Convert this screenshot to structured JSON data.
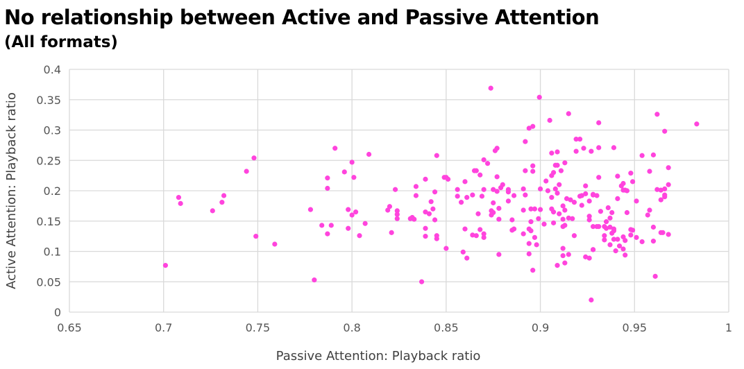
{
  "chart_data": {
    "type": "scatter",
    "title": "No relationship between Active and Passive Attention",
    "subtitle": "(All formats)",
    "xlabel": "Passive Attention: Playback ratio",
    "ylabel": "Active Attention: Playback ratio",
    "xlim": [
      0.65,
      1
    ],
    "ylim": [
      0,
      0.4
    ],
    "xticks": [
      "0.65",
      "0.7",
      "0.75",
      "0.8",
      "0.85",
      "0.9",
      "0.95",
      "1"
    ],
    "yticks": [
      "0",
      "0.05",
      "0.1",
      "0.15",
      "0.2",
      "0.25",
      "0.3",
      "0.35",
      "0.4"
    ],
    "grid": true,
    "legend": "none",
    "color": "#ff44dd",
    "points": [
      [
        0.701,
        0.077
      ],
      [
        0.708,
        0.189
      ],
      [
        0.709,
        0.179
      ],
      [
        0.726,
        0.167
      ],
      [
        0.731,
        0.181
      ],
      [
        0.732,
        0.192
      ],
      [
        0.744,
        0.232
      ],
      [
        0.748,
        0.254
      ],
      [
        0.749,
        0.125
      ],
      [
        0.759,
        0.112
      ],
      [
        0.778,
        0.169
      ],
      [
        0.78,
        0.053
      ],
      [
        0.784,
        0.143
      ],
      [
        0.787,
        0.129
      ],
      [
        0.787,
        0.204
      ],
      [
        0.787,
        0.221
      ],
      [
        0.789,
        0.143
      ],
      [
        0.791,
        0.27
      ],
      [
        0.796,
        0.231
      ],
      [
        0.798,
        0.138
      ],
      [
        0.798,
        0.169
      ],
      [
        0.8,
        0.247
      ],
      [
        0.8,
        0.16
      ],
      [
        0.801,
        0.222
      ],
      [
        0.802,
        0.165
      ],
      [
        0.804,
        0.126
      ],
      [
        0.807,
        0.146
      ],
      [
        0.809,
        0.26
      ],
      [
        0.819,
        0.168
      ],
      [
        0.82,
        0.174
      ],
      [
        0.821,
        0.131
      ],
      [
        0.823,
        0.202
      ],
      [
        0.824,
        0.167
      ],
      [
        0.824,
        0.161
      ],
      [
        0.824,
        0.154
      ],
      [
        0.831,
        0.154
      ],
      [
        0.832,
        0.156
      ],
      [
        0.833,
        0.153
      ],
      [
        0.834,
        0.207
      ],
      [
        0.834,
        0.192
      ],
      [
        0.837,
        0.05
      ],
      [
        0.839,
        0.219
      ],
      [
        0.839,
        0.165
      ],
      [
        0.839,
        0.138
      ],
      [
        0.839,
        0.125
      ],
      [
        0.841,
        0.162
      ],
      [
        0.842,
        0.182
      ],
      [
        0.843,
        0.17
      ],
      [
        0.844,
        0.198
      ],
      [
        0.844,
        0.152
      ],
      [
        0.845,
        0.258
      ],
      [
        0.845,
        0.126
      ],
      [
        0.845,
        0.121
      ],
      [
        0.849,
        0.222
      ],
      [
        0.85,
        0.222
      ],
      [
        0.851,
        0.219
      ],
      [
        0.85,
        0.105
      ],
      [
        0.8737,
        0.369
      ],
      [
        0.8995,
        0.354
      ],
      [
        0.915,
        0.327
      ],
      [
        0.905,
        0.316
      ],
      [
        0.894,
        0.303
      ],
      [
        0.896,
        0.306
      ],
      [
        0.892,
        0.281
      ],
      [
        0.919,
        0.285
      ],
      [
        0.921,
        0.285
      ],
      [
        0.906,
        0.262
      ],
      [
        0.909,
        0.264
      ],
      [
        0.919,
        0.265
      ],
      [
        0.923,
        0.27
      ],
      [
        0.927,
        0.265
      ],
      [
        0.876,
        0.266
      ],
      [
        0.877,
        0.27
      ],
      [
        0.87,
        0.251
      ],
      [
        0.872,
        0.245
      ],
      [
        0.865,
        0.233
      ],
      [
        0.866,
        0.233
      ],
      [
        0.868,
        0.226
      ],
      [
        0.86,
        0.215
      ],
      [
        0.877,
        0.223
      ],
      [
        0.892,
        0.233
      ],
      [
        0.896,
        0.241
      ],
      [
        0.896,
        0.232
      ],
      [
        0.908,
        0.242
      ],
      [
        0.909,
        0.242
      ],
      [
        0.906,
        0.225
      ],
      [
        0.907,
        0.23
      ],
      [
        0.911,
        0.233
      ],
      [
        0.913,
        0.246
      ],
      [
        0.903,
        0.216
      ],
      [
        0.91,
        0.21
      ],
      [
        0.856,
        0.202
      ],
      [
        0.856,
        0.191
      ],
      [
        0.858,
        0.181
      ],
      [
        0.861,
        0.189
      ],
      [
        0.864,
        0.193
      ],
      [
        0.869,
        0.191
      ],
      [
        0.87,
        0.202
      ],
      [
        0.875,
        0.202
      ],
      [
        0.877,
        0.199
      ],
      [
        0.879,
        0.205
      ],
      [
        0.88,
        0.21
      ],
      [
        0.883,
        0.202
      ],
      [
        0.883,
        0.198
      ],
      [
        0.886,
        0.192
      ],
      [
        0.883,
        0.183
      ],
      [
        0.875,
        0.18
      ],
      [
        0.878,
        0.171
      ],
      [
        0.874,
        0.167
      ],
      [
        0.875,
        0.164
      ],
      [
        0.874,
        0.16
      ],
      [
        0.867,
        0.162
      ],
      [
        0.891,
        0.203
      ],
      [
        0.892,
        0.193
      ],
      [
        0.891,
        0.168
      ],
      [
        0.895,
        0.17
      ],
      [
        0.897,
        0.17
      ],
      [
        0.9,
        0.169
      ],
      [
        0.9,
        0.203
      ],
      [
        0.904,
        0.2
      ],
      [
        0.908,
        0.203
      ],
      [
        0.906,
        0.189
      ],
      [
        0.909,
        0.196
      ],
      [
        0.906,
        0.17
      ],
      [
        0.907,
        0.165
      ],
      [
        0.91,
        0.162
      ],
      [
        0.912,
        0.175
      ],
      [
        0.913,
        0.168
      ],
      [
        0.914,
        0.187
      ],
      [
        0.916,
        0.185
      ],
      [
        0.918,
        0.181
      ],
      [
        0.922,
        0.176
      ],
      [
        0.921,
        0.191
      ],
      [
        0.922,
        0.192
      ],
      [
        0.924,
        0.195
      ],
      [
        0.924,
        0.208
      ],
      [
        0.926,
        0.183
      ],
      [
        0.928,
        0.194
      ],
      [
        0.93,
        0.192
      ],
      [
        0.899,
        0.154
      ],
      [
        0.895,
        0.149
      ],
      [
        0.902,
        0.145
      ],
      [
        0.885,
        0.152
      ],
      [
        0.878,
        0.153
      ],
      [
        0.907,
        0.147
      ],
      [
        0.912,
        0.153
      ],
      [
        0.915,
        0.155
      ],
      [
        0.917,
        0.154
      ],
      [
        0.926,
        0.158
      ],
      [
        0.926,
        0.152
      ],
      [
        0.928,
        0.141
      ],
      [
        0.93,
        0.141
      ],
      [
        0.86,
        0.137
      ],
      [
        0.864,
        0.127
      ],
      [
        0.866,
        0.126
      ],
      [
        0.868,
        0.136
      ],
      [
        0.87,
        0.129
      ],
      [
        0.87,
        0.123
      ],
      [
        0.885,
        0.135
      ],
      [
        0.886,
        0.137
      ],
      [
        0.891,
        0.129
      ],
      [
        0.894,
        0.137
      ],
      [
        0.895,
        0.134
      ],
      [
        0.897,
        0.123
      ],
      [
        0.898,
        0.111
      ],
      [
        0.894,
        0.113
      ],
      [
        0.912,
        0.141
      ],
      [
        0.913,
        0.143
      ],
      [
        0.918,
        0.126
      ],
      [
        0.859,
        0.099
      ],
      [
        0.861,
        0.089
      ],
      [
        0.878,
        0.095
      ],
      [
        0.894,
        0.096
      ],
      [
        0.896,
        0.069
      ],
      [
        0.912,
        0.105
      ],
      [
        0.912,
        0.093
      ],
      [
        0.915,
        0.095
      ],
      [
        0.909,
        0.077
      ],
      [
        0.913,
        0.081
      ],
      [
        0.924,
        0.091
      ],
      [
        0.926,
        0.089
      ],
      [
        0.928,
        0.103
      ],
      [
        0.927,
        0.02
      ],
      [
        0.962,
        0.326
      ],
      [
        0.983,
        0.31
      ],
      [
        0.966,
        0.298
      ],
      [
        0.931,
        0.312
      ],
      [
        0.931,
        0.271
      ],
      [
        0.939,
        0.271
      ],
      [
        0.954,
        0.258
      ],
      [
        0.96,
        0.259
      ],
      [
        0.958,
        0.232
      ],
      [
        0.968,
        0.238
      ],
      [
        0.931,
        0.222
      ],
      [
        0.941,
        0.224
      ],
      [
        0.948,
        0.229
      ],
      [
        0.949,
        0.215
      ],
      [
        0.944,
        0.212
      ],
      [
        0.943,
        0.208
      ],
      [
        0.944,
        0.201
      ],
      [
        0.945,
        0.201
      ],
      [
        0.946,
        0.2
      ],
      [
        0.962,
        0.202
      ],
      [
        0.964,
        0.201
      ],
      [
        0.966,
        0.203
      ],
      [
        0.968,
        0.21
      ],
      [
        0.966,
        0.193
      ],
      [
        0.966,
        0.19
      ],
      [
        0.964,
        0.185
      ],
      [
        0.928,
        0.193
      ],
      [
        0.941,
        0.187
      ],
      [
        0.951,
        0.183
      ],
      [
        0.936,
        0.172
      ],
      [
        0.938,
        0.164
      ],
      [
        0.932,
        0.166
      ],
      [
        0.946,
        0.164
      ],
      [
        0.958,
        0.168
      ],
      [
        0.957,
        0.16
      ],
      [
        0.937,
        0.155
      ],
      [
        0.935,
        0.149
      ],
      [
        0.931,
        0.141
      ],
      [
        0.934,
        0.141
      ],
      [
        0.935,
        0.138
      ],
      [
        0.937,
        0.14
      ],
      [
        0.939,
        0.137
      ],
      [
        0.939,
        0.134
      ],
      [
        0.938,
        0.13
      ],
      [
        0.948,
        0.136
      ],
      [
        0.949,
        0.135
      ],
      [
        0.948,
        0.127
      ],
      [
        0.951,
        0.123
      ],
      [
        0.954,
        0.116
      ],
      [
        0.96,
        0.14
      ],
      [
        0.964,
        0.131
      ],
      [
        0.965,
        0.131
      ],
      [
        0.968,
        0.128
      ],
      [
        0.96,
        0.117
      ],
      [
        0.934,
        0.126
      ],
      [
        0.934,
        0.119
      ],
      [
        0.939,
        0.12
      ],
      [
        0.941,
        0.12
      ],
      [
        0.937,
        0.111
      ],
      [
        0.944,
        0.124
      ],
      [
        0.945,
        0.118
      ],
      [
        0.942,
        0.109
      ],
      [
        0.944,
        0.104
      ],
      [
        0.94,
        0.101
      ],
      [
        0.945,
        0.094
      ],
      [
        0.928,
        0.103
      ],
      [
        0.961,
        0.059
      ]
    ]
  }
}
